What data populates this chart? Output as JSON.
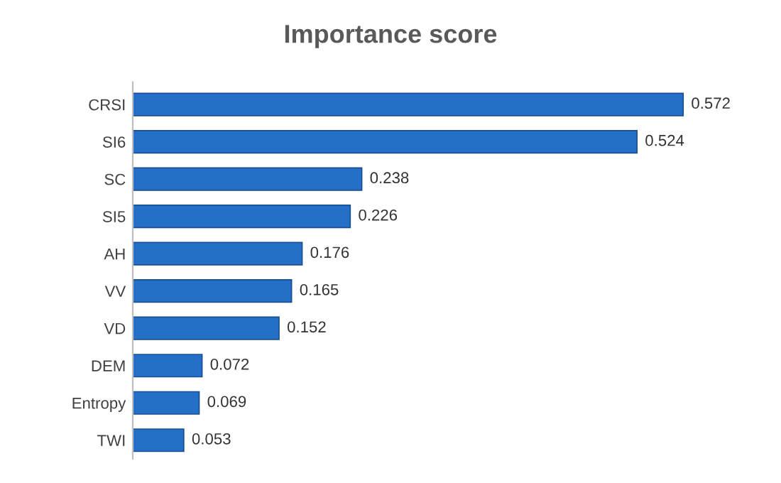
{
  "chart_data": {
    "type": "bar",
    "orientation": "horizontal",
    "title": "Importance score",
    "categories": [
      "CRSI",
      "SI6",
      "SC",
      "SI5",
      "AH",
      "VV",
      "VD",
      "DEM",
      "Entropy",
      "TWI"
    ],
    "values": [
      0.572,
      0.524,
      0.238,
      0.226,
      0.176,
      0.165,
      0.152,
      0.072,
      0.069,
      0.053
    ],
    "color": "#2470c8",
    "data_labels": true,
    "tick_labels": "y",
    "grid": false,
    "legend": false
  }
}
